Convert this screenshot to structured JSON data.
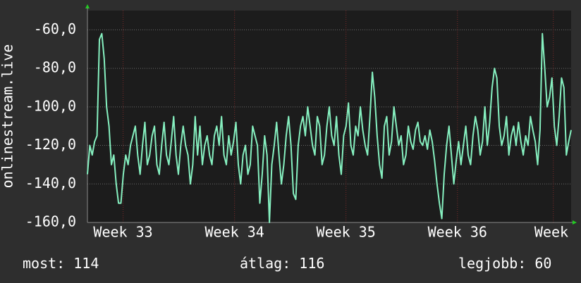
{
  "chart_data": {
    "type": "line",
    "ylabel": "onlinestream.live",
    "color": "#86f0c0",
    "grid": true,
    "ylim": [
      -160,
      -50
    ],
    "yticks": [
      {
        "value": -160,
        "label": "-160,0"
      },
      {
        "value": -140,
        "label": "-140,0"
      },
      {
        "value": -120,
        "label": "-120,0"
      },
      {
        "value": -100,
        "label": "-100,0"
      },
      {
        "value": -80,
        "label": "-80,0"
      },
      {
        "value": -60,
        "label": "-60,0"
      }
    ],
    "xlim": [
      32.68,
      37.02
    ],
    "xticks": [
      {
        "value": 33,
        "label": "Week 33"
      },
      {
        "value": 34,
        "label": "Week 34"
      },
      {
        "value": 35,
        "label": "Week 35"
      },
      {
        "value": 36,
        "label": "Week 36"
      },
      {
        "value": 36.86,
        "label": "Week"
      }
    ],
    "values": [
      -135,
      -120,
      -125,
      -118,
      -115,
      -65,
      -62,
      -75,
      -100,
      -110,
      -130,
      -125,
      -140,
      -150,
      -150,
      -135,
      -125,
      -130,
      -120,
      -115,
      -110,
      -125,
      -135,
      -120,
      -108,
      -130,
      -125,
      -115,
      -110,
      -130,
      -135,
      -120,
      -108,
      -125,
      -130,
      -118,
      -105,
      -125,
      -135,
      -120,
      -110,
      -120,
      -125,
      -140,
      -130,
      -105,
      -125,
      -110,
      -130,
      -120,
      -115,
      -125,
      -130,
      -115,
      -110,
      -120,
      -105,
      -125,
      -130,
      -115,
      -125,
      -118,
      -108,
      -130,
      -140,
      -125,
      -120,
      -135,
      -130,
      -110,
      -115,
      -120,
      -150,
      -135,
      -115,
      -125,
      -160,
      -130,
      -120,
      -108,
      -125,
      -140,
      -130,
      -115,
      -105,
      -120,
      -145,
      -148,
      -120,
      -110,
      -105,
      -115,
      -100,
      -110,
      -120,
      -125,
      -105,
      -110,
      -130,
      -125,
      -110,
      -100,
      -115,
      -120,
      -105,
      -125,
      -135,
      -115,
      -110,
      -98,
      -120,
      -125,
      -110,
      -115,
      -100,
      -112,
      -120,
      -125,
      -105,
      -82,
      -95,
      -115,
      -130,
      -137,
      -110,
      -105,
      -125,
      -118,
      -100,
      -110,
      -120,
      -115,
      -130,
      -125,
      -110,
      -118,
      -122,
      -112,
      -108,
      -118,
      -120,
      -115,
      -122,
      -112,
      -118,
      -128,
      -140,
      -150,
      -158,
      -135,
      -120,
      -110,
      -125,
      -140,
      -128,
      -118,
      -130,
      -120,
      -110,
      -125,
      -130,
      -115,
      -105,
      -112,
      -125,
      -118,
      -100,
      -120,
      -108,
      -90,
      -80,
      -85,
      -110,
      -120,
      -115,
      -105,
      -125,
      -115,
      -110,
      -120,
      -108,
      -118,
      -125,
      -115,
      -120,
      -105,
      -112,
      -118,
      -130,
      -112,
      -62,
      -80,
      -100,
      -95,
      -85,
      -110,
      -120,
      -105,
      -85,
      -90,
      -125,
      -118,
      -112
    ],
    "stats": [
      {
        "label": "most:",
        "value": 114
      },
      {
        "label": "átlag:",
        "value": 116
      },
      {
        "label": "legjobb:",
        "value": 60
      }
    ]
  }
}
